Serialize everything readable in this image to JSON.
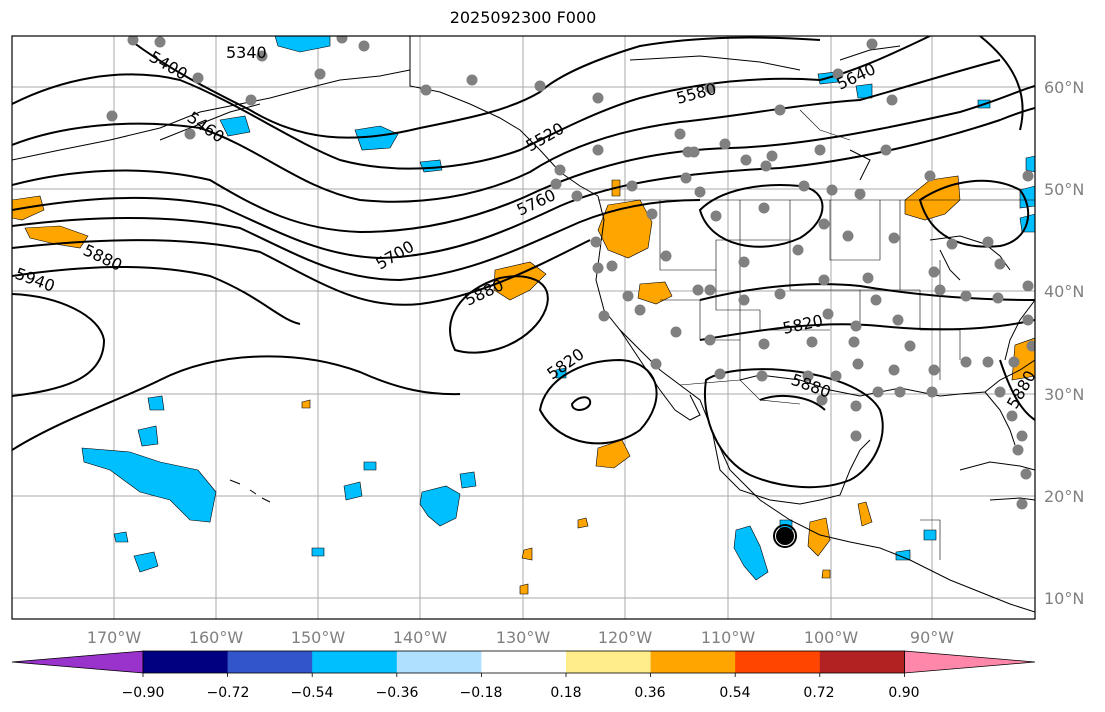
{
  "title": "2025092300 F000",
  "lon_labels": [
    "170°W",
    "160°W",
    "150°W",
    "140°W",
    "130°W",
    "120°W",
    "110°W",
    "100°W",
    "90°W"
  ],
  "lat_labels": [
    "60°N",
    "50°N",
    "40°N",
    "30°N",
    "20°N",
    "10°N"
  ],
  "contour_labels": [
    "5340",
    "5400",
    "5460",
    "5520",
    "5580",
    "5640",
    "5700",
    "5760",
    "5880",
    "5940",
    "5880",
    "5820",
    "5820",
    "5880",
    "5880"
  ],
  "colorbar": {
    "ticks": [
      "−0.90",
      "−0.72",
      "−0.54",
      "−0.36",
      "−0.18",
      "0.18",
      "0.36",
      "0.54",
      "0.72",
      "0.90"
    ],
    "colors": [
      "#9933cc",
      "#000080",
      "#3355cc",
      "#00bfff",
      "#b0e0ff",
      "#ffffff",
      "#ffec8b",
      "#ffa500",
      "#ff4500",
      "#b22222",
      "#ff88aa"
    ]
  },
  "colors": {
    "positive": "#ffa500",
    "negative": "#00bfff",
    "station": "#808080",
    "grid": "#aaaaaa"
  }
}
